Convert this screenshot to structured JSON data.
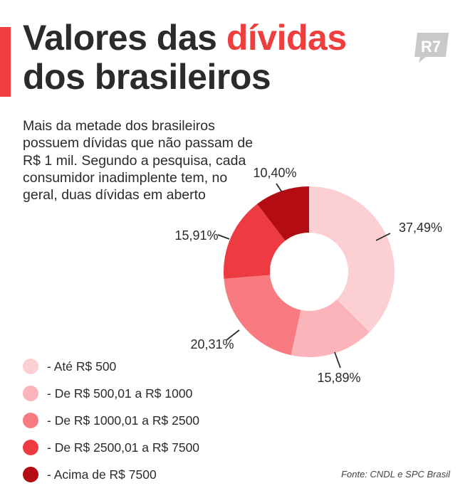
{
  "header": {
    "title_part1": "Valores das ",
    "title_highlight": "dívidas",
    "title_line2": "dos brasileiros",
    "accent_color": "#ee3e3e",
    "logo_text": "R7"
  },
  "description": "Mais da metade dos brasileiros possuem dívidas que não passam de R$ 1 mil. Segundo a pesquisa, cada consumidor inadimplente tem, no geral, duas dívidas em aberto",
  "chart_data": {
    "type": "pie",
    "donut": true,
    "series": [
      {
        "label": "- Até R$ 500",
        "value": 37.49,
        "display": "37,49%",
        "color": "#fccfd2"
      },
      {
        "label": "- De R$ 500,01 a R$ 1000",
        "value": 15.89,
        "display": "15,89%",
        "color": "#fbb5ba"
      },
      {
        "label": "- De R$ 1000,01 a R$ 2500",
        "value": 20.31,
        "display": "20,31%",
        "color": "#f77b80"
      },
      {
        "label": "- De R$ 2500,01 a R$ 7500",
        "value": 15.91,
        "display": "15,91%",
        "color": "#ed3b41"
      },
      {
        "label": "- Acima de R$ 7500",
        "value": 10.4,
        "display": "10,40%",
        "color": "#b30d13"
      }
    ],
    "legend_position": "bottom-left"
  },
  "source": "Fonte: CNDL e SPC Brasil"
}
